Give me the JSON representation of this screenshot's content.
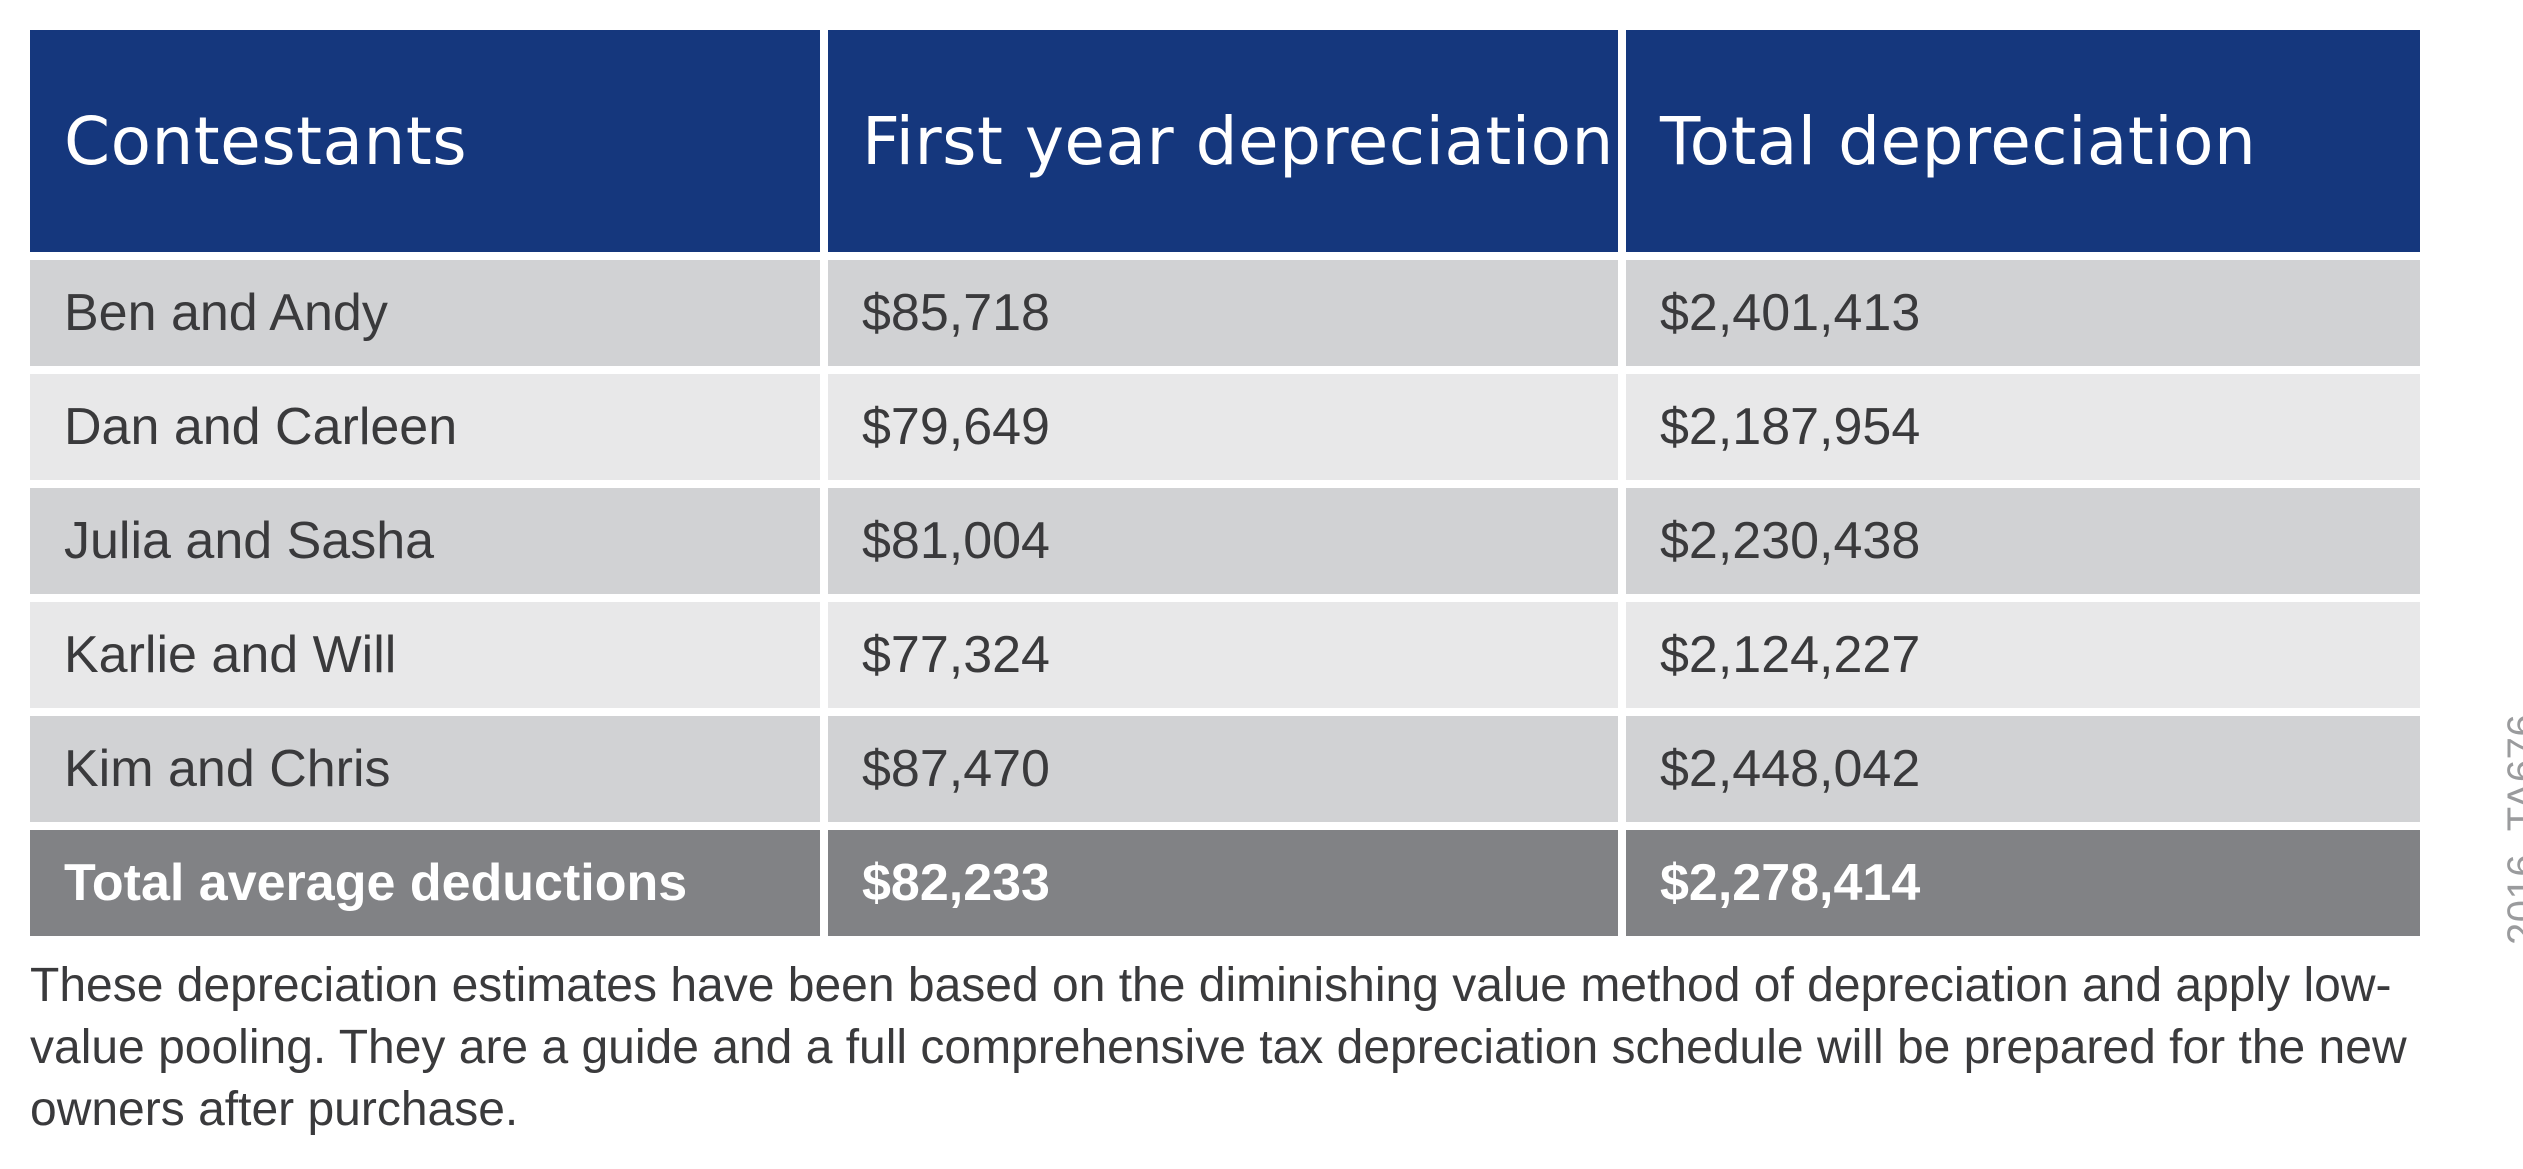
{
  "chart_data": {
    "type": "table",
    "columns": [
      "Contestants",
      "First year depreciation",
      "Total depreciation"
    ],
    "rows": [
      [
        "Ben and Andy",
        "$85,718",
        "$2,401,413"
      ],
      [
        "Dan and Carleen",
        "$79,649",
        "$2,187,954"
      ],
      [
        "Julia and Sasha",
        "$81,004",
        "$2,230,438"
      ],
      [
        "Karlie and Will",
        "$77,324",
        "$2,124,227"
      ],
      [
        "Kim and Chris",
        "$87,470",
        "$2,448,042"
      ]
    ],
    "total_row": [
      "Total average deductions",
      "$82,233",
      "$2,278,414"
    ]
  },
  "footnote": "These depreciation estimates have been based on the diminishing value method of depreciation and apply low-value pooling. They are a guide and a full comprehensive tax depreciation schedule will be prepared for the new owners after purchase.",
  "watermark": "2016_TA676",
  "colors": {
    "header_bg": "#15377d",
    "row_dark": "#d1d2d4",
    "row_light": "#e8e8e9",
    "total_bg": "#818285"
  }
}
